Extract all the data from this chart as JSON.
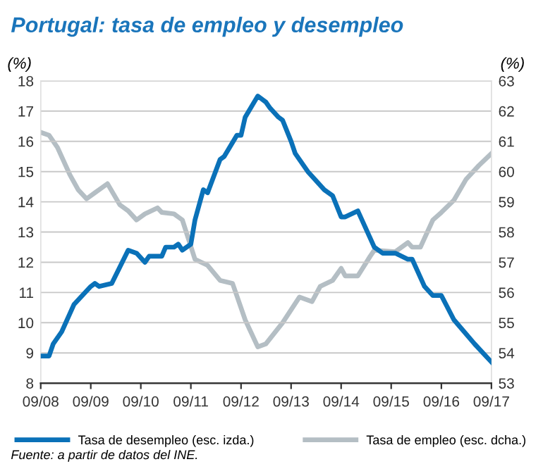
{
  "chart_data": {
    "type": "line",
    "title": "Portugal: tasa de empleo y desempleo",
    "ylabel": "(%)",
    "y2label": "(%)",
    "xlim": [
      "2008-09",
      "2017-09"
    ],
    "xticks": [
      {
        "value": "2008-09",
        "label": "09/08"
      },
      {
        "value": "2009-09",
        "label": "09/09"
      },
      {
        "value": "2010-09",
        "label": "09/10"
      },
      {
        "value": "2011-09",
        "label": "09/11"
      },
      {
        "value": "2012-09",
        "label": "09/12"
      },
      {
        "value": "2013-09",
        "label": "09/13"
      },
      {
        "value": "2014-09",
        "label": "09/14"
      },
      {
        "value": "2015-09",
        "label": "09/15"
      },
      {
        "value": "2016-09",
        "label": "09/16"
      },
      {
        "value": "2017-09",
        "label": "09/17"
      }
    ],
    "ylim": [
      8,
      18
    ],
    "yticks": [
      8,
      9,
      10,
      11,
      12,
      13,
      14,
      15,
      16,
      17,
      18
    ],
    "y2lim": [
      53,
      63
    ],
    "y2ticks": [
      53,
      54,
      55,
      56,
      57,
      58,
      59,
      60,
      61,
      62,
      63
    ],
    "grid": "y",
    "legend": "bottom",
    "marker": "none",
    "line_style": "solid",
    "series": [
      {
        "name": "Tasa de desempleo (esc. izda.)",
        "color": "#0a71b8",
        "x": [
          "2008-09",
          "2008-11",
          "2008-12",
          "2009-02",
          "2009-05",
          "2009-09",
          "2009-10",
          "2009-11",
          "2010-02",
          "2010-06",
          "2010-08",
          "2010-10",
          "2010-11",
          "2011-02",
          "2011-03",
          "2011-05",
          "2011-06",
          "2011-07",
          "2011-09",
          "2011-10",
          "2011-12",
          "2012-01",
          "2012-04",
          "2012-05",
          "2012-08",
          "2012-09",
          "2012-10",
          "2013-01",
          "2013-03",
          "2013-04",
          "2013-06",
          "2013-07",
          "2013-09",
          "2013-10",
          "2014-01",
          "2014-05",
          "2014-07",
          "2014-09",
          "2014-10",
          "2015-01",
          "2015-05",
          "2015-07",
          "2015-10",
          "2016-01",
          "2016-02",
          "2016-05",
          "2016-07",
          "2016-09",
          "2016-12",
          "2017-05",
          "2017-09"
        ],
        "values": [
          8.9,
          8.9,
          9.3,
          9.7,
          10.6,
          11.2,
          11.3,
          11.2,
          11.3,
          12.4,
          12.3,
          12.0,
          12.2,
          12.2,
          12.5,
          12.5,
          12.6,
          12.4,
          12.6,
          13.4,
          14.4,
          14.3,
          15.4,
          15.5,
          16.2,
          16.2,
          16.8,
          17.5,
          17.3,
          17.1,
          16.8,
          16.7,
          16.0,
          15.6,
          15.0,
          14.4,
          14.2,
          13.5,
          13.5,
          13.7,
          12.5,
          12.3,
          12.3,
          12.1,
          12.1,
          11.2,
          10.9,
          10.9,
          10.1,
          9.3,
          8.7
        ]
      },
      {
        "name": "Tasa de empleo (esc. dcha.)",
        "color": "#b4bec4",
        "axis": "y2",
        "x": [
          "2008-09",
          "2008-11",
          "2009-01",
          "2009-04",
          "2009-06",
          "2009-08",
          "2009-10",
          "2010-01",
          "2010-04",
          "2010-06",
          "2010-08",
          "2010-10",
          "2011-01",
          "2011-02",
          "2011-05",
          "2011-07",
          "2011-10",
          "2012-01",
          "2012-04",
          "2012-07",
          "2012-10",
          "2013-01",
          "2013-03",
          "2013-07",
          "2013-11",
          "2014-02",
          "2014-04",
          "2014-07",
          "2014-09",
          "2014-10",
          "2015-01",
          "2015-04",
          "2015-05",
          "2015-10",
          "2016-01",
          "2016-02",
          "2016-04",
          "2016-07",
          "2016-09",
          "2016-12",
          "2017-03",
          "2017-06",
          "2017-09"
        ],
        "values": [
          61.3,
          61.2,
          60.8,
          59.9,
          59.4,
          59.1,
          59.3,
          59.6,
          58.9,
          58.7,
          58.4,
          58.6,
          58.8,
          58.65,
          58.6,
          58.4,
          57.1,
          56.9,
          56.4,
          56.3,
          55.1,
          54.2,
          54.3,
          55.0,
          55.85,
          55.7,
          56.2,
          56.4,
          56.8,
          56.55,
          56.55,
          57.2,
          57.4,
          57.35,
          57.65,
          57.5,
          57.5,
          58.4,
          58.65,
          59.05,
          59.75,
          60.2,
          60.6
        ]
      }
    ],
    "annotations": [
      "Fuente: a partir de datos del INE."
    ]
  }
}
